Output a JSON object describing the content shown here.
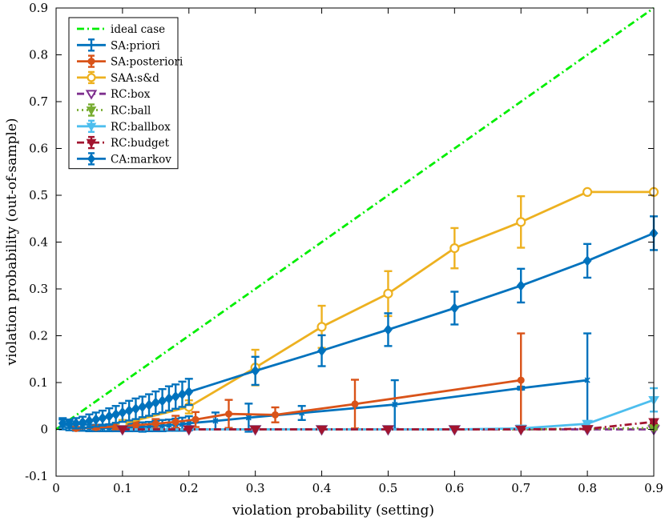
{
  "chart_data": {
    "type": "line",
    "title": "",
    "xlabel": "violation probability (setting)",
    "ylabel": "violation probability (out-of-sample)",
    "xlim": [
      0,
      0.9
    ],
    "ylim": [
      -0.1,
      0.9
    ],
    "xticks": [
      "0",
      "0.1",
      "0.2",
      "0.3",
      "0.4",
      "0.5",
      "0.6",
      "0.7",
      "0.8",
      "0.9"
    ],
    "yticks": [
      "-0.1",
      "0",
      "0.1",
      "0.2",
      "0.3",
      "0.4",
      "0.5",
      "0.6",
      "0.7",
      "0.8",
      "0.9"
    ],
    "legend_position": "top-left",
    "series": [
      {
        "name": "ideal case",
        "color": "#00ee00",
        "dash": "dashdot",
        "marker": "none",
        "x": [
          0,
          0.9
        ],
        "y": [
          0,
          0.9
        ]
      },
      {
        "name": "SA:priori",
        "color": "#0072bd",
        "dash": "solid",
        "marker": "x",
        "x": [
          0.01,
          0.02,
          0.03,
          0.04,
          0.05,
          0.06,
          0.07,
          0.08,
          0.09,
          0.1,
          0.11,
          0.12,
          0.13,
          0.14,
          0.15,
          0.16,
          0.17,
          0.18,
          0.19,
          0.2,
          0.24,
          0.29,
          0.37,
          0.51,
          0.7,
          0.8
        ],
        "y": [
          0.012,
          0.008,
          0.005,
          0.004,
          0.003,
          0.003,
          0.003,
          0.003,
          0.003,
          0.004,
          0.004,
          0.005,
          0.005,
          0.006,
          0.007,
          0.008,
          0.009,
          0.01,
          0.011,
          0.013,
          0.018,
          0.025,
          0.035,
          0.053,
          0.088,
          0.105
        ],
        "err": [
          0.012,
          0.01,
          0.008,
          0.007,
          0.007,
          0.007,
          0.007,
          0.007,
          0.007,
          0.008,
          0.008,
          0.009,
          0.01,
          0.01,
          0.011,
          0.012,
          0.012,
          0.013,
          0.014,
          0.015,
          0.018,
          0.03,
          0.015,
          0.052,
          0.003,
          0.1
        ]
      },
      {
        "name": "SA:posteriori",
        "color": "#d95319",
        "dash": "solid",
        "marker": "dot",
        "x": [
          0.03,
          0.06,
          0.09,
          0.12,
          0.15,
          0.18,
          0.21,
          0.26,
          0.33,
          0.45,
          0.7
        ],
        "y": [
          0.002,
          0.004,
          0.006,
          0.009,
          0.012,
          0.016,
          0.021,
          0.033,
          0.031,
          0.054,
          0.105
        ],
        "err": [
          0.003,
          0.004,
          0.006,
          0.008,
          0.01,
          0.013,
          0.016,
          0.03,
          0.016,
          0.052,
          0.1
        ]
      },
      {
        "name": "SAA:s&d",
        "color": "#edb120",
        "dash": "solid",
        "marker": "circle",
        "x": [
          0.1,
          0.2,
          0.3,
          0.4,
          0.5,
          0.6,
          0.7,
          0.8,
          0.9
        ],
        "y": [
          0.012,
          0.048,
          0.132,
          0.219,
          0.29,
          0.387,
          0.443,
          0.507,
          0.507
        ],
        "err": [
          0.008,
          0.014,
          0.038,
          0.045,
          0.048,
          0.043,
          0.055,
          0.003,
          0.003
        ]
      },
      {
        "name": "RC:box",
        "color": "#7e2f8e",
        "dash": "dashed",
        "marker": "triangle-down-open",
        "x": [
          0.1,
          0.2,
          0.3,
          0.4,
          0.5,
          0.6,
          0.7,
          0.8,
          0.9
        ],
        "y": [
          0,
          0,
          0,
          0,
          0,
          0,
          0,
          0,
          0
        ],
        "err": [
          0,
          0,
          0,
          0,
          0,
          0,
          0,
          0,
          0
        ]
      },
      {
        "name": "RC:ball",
        "color": "#77ac30",
        "dash": "dotted",
        "marker": "triangle-down",
        "x": [
          0.1,
          0.2,
          0.3,
          0.4,
          0.5,
          0.6,
          0.7,
          0.8,
          0.9
        ],
        "y": [
          0,
          0,
          0,
          0,
          0,
          0,
          0,
          0.001,
          0.003
        ],
        "err": [
          0,
          0,
          0,
          0,
          0,
          0,
          0,
          0.001,
          0.003
        ]
      },
      {
        "name": "RC:ballbox",
        "color": "#4dbeee",
        "dash": "solid",
        "marker": "triangle-down",
        "x": [
          0.1,
          0.2,
          0.3,
          0.4,
          0.5,
          0.6,
          0.7,
          0.8,
          0.9
        ],
        "y": [
          0,
          0,
          0,
          0,
          0,
          0,
          0.002,
          0.012,
          0.063
        ],
        "err": [
          0,
          0,
          0,
          0,
          0,
          0,
          0.002,
          0.006,
          0.025
        ]
      },
      {
        "name": "RC:budget",
        "color": "#a2142f",
        "dash": "dashdot",
        "marker": "triangle-down",
        "x": [
          0.1,
          0.2,
          0.3,
          0.4,
          0.5,
          0.6,
          0.7,
          0.8,
          0.9
        ],
        "y": [
          0,
          0,
          0,
          0,
          0,
          0,
          0,
          0.001,
          0.016
        ],
        "err": [
          0,
          0,
          0,
          0,
          0,
          0,
          0,
          0.001,
          0.003
        ]
      },
      {
        "name": "CA:markov",
        "color": "#0072bd",
        "dash": "solid",
        "marker": "diamond",
        "x": [
          0.01,
          0.02,
          0.03,
          0.04,
          0.05,
          0.06,
          0.07,
          0.08,
          0.09,
          0.1,
          0.11,
          0.12,
          0.13,
          0.14,
          0.15,
          0.16,
          0.17,
          0.18,
          0.19,
          0.2,
          0.3,
          0.4,
          0.5,
          0.6,
          0.7,
          0.8,
          0.9
        ],
        "y": [
          0.013,
          0.012,
          0.013,
          0.015,
          0.018,
          0.021,
          0.024,
          0.028,
          0.032,
          0.036,
          0.04,
          0.044,
          0.048,
          0.052,
          0.057,
          0.061,
          0.066,
          0.07,
          0.075,
          0.08,
          0.125,
          0.168,
          0.213,
          0.259,
          0.307,
          0.36,
          0.419
        ],
        "err": [
          0.008,
          0.009,
          0.011,
          0.012,
          0.014,
          0.015,
          0.016,
          0.017,
          0.018,
          0.02,
          0.021,
          0.022,
          0.022,
          0.023,
          0.024,
          0.025,
          0.026,
          0.026,
          0.027,
          0.028,
          0.03,
          0.033,
          0.035,
          0.035,
          0.036,
          0.036,
          0.036
        ]
      }
    ]
  }
}
